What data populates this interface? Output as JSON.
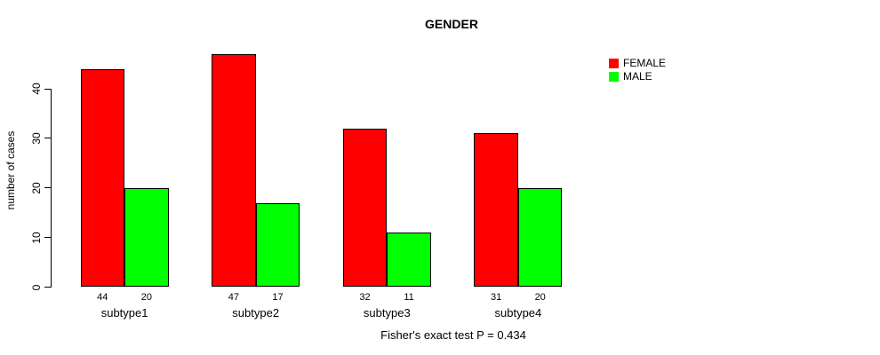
{
  "title": "GENDER",
  "footer_note": "Fisher's exact test P = 0.434",
  "colors": {
    "female": "#FF0000",
    "male": "#00FF00",
    "axis": "#000000",
    "background": "#FFFFFF"
  },
  "chart_data": {
    "type": "bar",
    "title": "GENDER",
    "xlabel": "",
    "ylabel": "number of cases",
    "categories": [
      "subtype1",
      "subtype2",
      "subtype3",
      "subtype4"
    ],
    "series": [
      {
        "name": "FEMALE",
        "color": "#FF0000",
        "values": [
          44,
          47,
          32,
          31
        ]
      },
      {
        "name": "MALE",
        "color": "#00FF00",
        "values": [
          20,
          17,
          11,
          20
        ]
      }
    ],
    "bar_value_labels": [
      [
        "44",
        "20"
      ],
      [
        "47",
        "17"
      ],
      [
        "32",
        "11"
      ],
      [
        "31",
        "20"
      ]
    ],
    "yticks": [
      0,
      10,
      20,
      30,
      40
    ],
    "ylim": [
      0,
      47.7
    ],
    "grid": false,
    "legend_position": "top-right",
    "legend_entries": [
      "FEMALE",
      "MALE"
    ],
    "annotation": "Fisher's exact test P = 0.434"
  }
}
